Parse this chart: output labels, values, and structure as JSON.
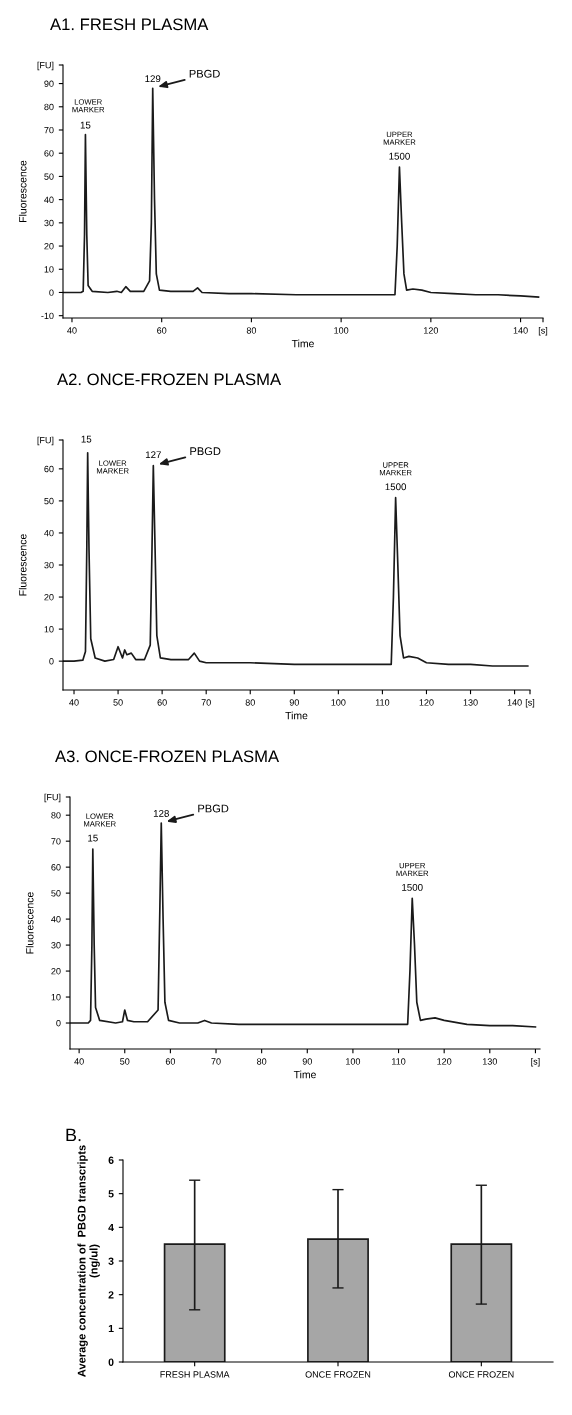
{
  "chart_data": [
    {
      "type": "line",
      "title": "A1. FRESH PLASMA",
      "xlabel": "Time",
      "ylabel": "Fluorescence",
      "color": "#1a1a1a",
      "x": [
        38,
        40,
        42,
        42.5,
        42.8,
        43,
        43.3,
        43.6,
        44.5,
        48,
        50,
        51,
        52,
        53,
        56,
        57.3,
        57.7,
        58,
        58.4,
        58.8,
        59.5,
        62,
        66,
        67,
        68,
        69,
        75,
        80,
        90,
        100,
        110,
        112,
        112.5,
        113,
        113.5,
        114,
        114.6,
        116,
        118,
        120,
        125,
        130,
        135,
        140,
        144
      ],
      "values": [
        0,
        0,
        0,
        0.5,
        25,
        68,
        25,
        3,
        0.5,
        0,
        0.5,
        0,
        2.5,
        0.5,
        0.5,
        5,
        30,
        88,
        40,
        8,
        1,
        0.5,
        0.5,
        0.5,
        2,
        0,
        -0.5,
        -0.5,
        -1,
        -1,
        -1,
        -1,
        20,
        54,
        30,
        8,
        1,
        1.5,
        1,
        0,
        -0.5,
        -1,
        -1,
        -1.5,
        -2
      ],
      "xlim": [
        38,
        145
      ],
      "ylim": [
        -11,
        98
      ],
      "xticks": [
        40,
        60,
        80,
        100,
        120,
        140,
        {
          "value": 145,
          "label": "[s]"
        }
      ],
      "yticks": [
        -10,
        0,
        10,
        20,
        30,
        40,
        50,
        60,
        70,
        80,
        90,
        {
          "value": 98,
          "label": "[FU]"
        }
      ],
      "annotations": [
        {
          "text": "15",
          "x": 43,
          "y": 68
        },
        {
          "text": "LOWER\nMARKER",
          "x": 43,
          "y": 68
        },
        {
          "text": "129",
          "x": 58,
          "y": 88
        },
        {
          "text": "PBGD",
          "x": 58,
          "y": 88
        },
        {
          "text": "UPPER\nMARKER",
          "x": 113,
          "y": 54
        },
        {
          "text": "1500",
          "x": 113,
          "y": 54
        }
      ]
    },
    {
      "type": "line",
      "title": "A2. ONCE-FROZEN PLASMA",
      "xlabel": "Time",
      "ylabel": "Fluorescence",
      "color": "#1a1a1a",
      "x": [
        37.5,
        40,
        42,
        42.6,
        42.9,
        43.1,
        43.4,
        43.8,
        44.8,
        47,
        49,
        50,
        51,
        51.5,
        52,
        53,
        54,
        56,
        57.3,
        57.7,
        58,
        58.4,
        58.8,
        59.6,
        62,
        66,
        67.3,
        68.5,
        70,
        80,
        90,
        100,
        110,
        112,
        112.5,
        113,
        113.5,
        114,
        114.8,
        116,
        118,
        120,
        125,
        130,
        135,
        140,
        143
      ],
      "values": [
        0,
        0,
        0.3,
        3,
        35,
        65,
        35,
        7,
        1,
        0,
        0.5,
        4.5,
        1,
        3.5,
        2,
        2.5,
        0.5,
        0.5,
        5,
        35,
        61,
        35,
        8,
        1,
        0.5,
        0.5,
        2.5,
        0,
        -0.5,
        -0.5,
        -1,
        -1,
        -1,
        -1,
        20,
        51,
        30,
        8,
        1,
        1.5,
        1,
        -0.5,
        -1,
        -1,
        -1.5,
        -1.5,
        -1.5
      ],
      "xlim": [
        37.5,
        143.5
      ],
      "ylim": [
        -9,
        69
      ],
      "xticks": [
        40,
        50,
        60,
        70,
        80,
        90,
        100,
        110,
        120,
        130,
        140,
        {
          "value": 143.5,
          "label": "[s]"
        }
      ],
      "yticks": [
        0,
        10,
        20,
        30,
        40,
        50,
        60,
        {
          "value": 69,
          "label": "[FU]"
        }
      ],
      "annotations": [
        {
          "text": "15",
          "x": 43.1,
          "y": 65
        },
        {
          "text": "LOWER\nMARKER",
          "x": 43.1,
          "y": 65
        },
        {
          "text": "127",
          "x": 58,
          "y": 61
        },
        {
          "text": "PBGD",
          "x": 58,
          "y": 61
        },
        {
          "text": "UPPER\nMARKER",
          "x": 113,
          "y": 51
        },
        {
          "text": "1500",
          "x": 113,
          "y": 51
        }
      ]
    },
    {
      "type": "line",
      "title": "A3. ONCE-FROZEN PLASMA",
      "xlabel": "Time",
      "ylabel": "Fluorescence",
      "color": "#1a1a1a",
      "x": [
        38,
        40,
        42,
        42.5,
        42.8,
        43,
        43.3,
        43.6,
        44.5,
        48,
        49.5,
        50,
        50.6,
        52,
        55,
        57.3,
        57.7,
        58,
        58.4,
        58.8,
        59.6,
        62,
        66,
        67.5,
        69,
        75,
        80,
        90,
        100,
        110,
        112,
        112.5,
        113,
        113.5,
        114,
        114.8,
        116,
        118,
        120,
        125,
        130,
        135,
        140
      ],
      "values": [
        0,
        0,
        0,
        1,
        30,
        67,
        30,
        6,
        1,
        0,
        0.5,
        5,
        1,
        0.5,
        0.5,
        5,
        45,
        77,
        40,
        8,
        1,
        0,
        0,
        1,
        0,
        -0.5,
        -0.5,
        -0.5,
        -0.5,
        -0.5,
        -0.5,
        20,
        48,
        30,
        8,
        1,
        1.5,
        2,
        1,
        -0.5,
        -1,
        -1,
        -1.5
      ],
      "xlim": [
        38,
        141
      ],
      "ylim": [
        -10,
        87
      ],
      "xticks": [
        40,
        50,
        60,
        70,
        80,
        90,
        100,
        110,
        120,
        130,
        {
          "value": 140,
          "label": "[s]"
        }
      ],
      "yticks": [
        0,
        10,
        20,
        30,
        40,
        50,
        60,
        70,
        80,
        {
          "value": 87,
          "label": "[FU]"
        }
      ],
      "annotations": [
        {
          "text": "15",
          "x": 43,
          "y": 67
        },
        {
          "text": "LOWER\nMARKER",
          "x": 43,
          "y": 67
        },
        {
          "text": "128",
          "x": 58,
          "y": 77
        },
        {
          "text": "PBGD",
          "x": 58,
          "y": 77
        },
        {
          "text": "UPPER\nMARKER",
          "x": 113,
          "y": 48
        },
        {
          "text": "1500",
          "x": 113,
          "y": 48
        }
      ]
    },
    {
      "type": "bar",
      "title": "B.",
      "ylabel": "Average concentration of  PBGD transcripts\n(ng/ul)",
      "color": "#a6a6a6",
      "categories": [
        "FRESH PLASMA",
        "ONCE FROZEN",
        "ONCE FROZEN"
      ],
      "values": [
        3.5,
        3.65,
        3.5
      ],
      "errors": [
        [
          1.55,
          5.4
        ],
        [
          2.2,
          5.12
        ],
        [
          1.72,
          5.25
        ]
      ],
      "ylim": [
        0,
        6
      ],
      "yticks": [
        0,
        1,
        2,
        3,
        4,
        5,
        6
      ]
    }
  ]
}
